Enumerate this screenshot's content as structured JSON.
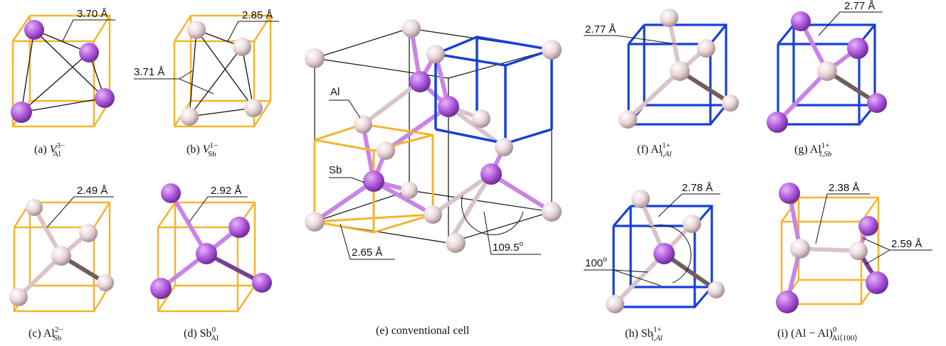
{
  "colors": {
    "al_atom": "#e8d5d8",
    "sb_atom": "#b15be0",
    "orange_cell": "#f3b52a",
    "blue_cell": "#1740d6",
    "edge": "#111111"
  },
  "panels": {
    "a": {
      "tag": "(a) ",
      "base": "V",
      "sup": "3−",
      "sub": "Al",
      "dist": "3.70 Å"
    },
    "b": {
      "tag": "(b) ",
      "base": "V",
      "sup": "1−",
      "sub": "Sb",
      "dist_top": "2.85 Å",
      "dist_side": "3.71 Å"
    },
    "c": {
      "tag": "(c) ",
      "base": "Al",
      "sup": "2−",
      "sub": "Sb",
      "dist": "2.49 Å"
    },
    "d": {
      "tag": "(d) ",
      "base": "Sb",
      "sup": "0",
      "sub": "Al",
      "dist": "2.92 Å"
    },
    "e": {
      "caption": "(e) conventional cell",
      "al_label": "Al",
      "sb_label": "Sb",
      "dist": "2.65 Å",
      "angle": "109.5",
      "angle_unit": "o"
    },
    "f": {
      "tag": "(f) ",
      "base": "Al",
      "sup": "1+",
      "sub": "i,Al",
      "dist": "2.77 Å"
    },
    "g": {
      "tag": "(g) ",
      "base": "Al",
      "sup": "1+",
      "sub": "i,Sb",
      "dist": "2.77 Å"
    },
    "h": {
      "tag": "(h) ",
      "base": "Sb",
      "sup": "1+",
      "sub": "i,Al",
      "dist": "2.78 Å",
      "angle": "100",
      "angle_unit": "o"
    },
    "i": {
      "tag": "(i) ",
      "base": "(Al − Al)",
      "sup": "0",
      "sub": "Al⟨100⟩",
      "dist_top": "2.38 Å",
      "dist_side": "2.59 Å"
    }
  }
}
